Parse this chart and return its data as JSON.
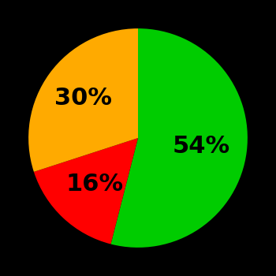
{
  "slices": [
    54,
    16,
    30
  ],
  "colors": [
    "#00cc00",
    "#ff0000",
    "#ffaa00"
  ],
  "labels": [
    "54%",
    "16%",
    "30%"
  ],
  "label_r": [
    0.58,
    0.58,
    0.62
  ],
  "background_color": "#000000",
  "text_color": "#000000",
  "font_size": 22,
  "font_weight": "bold",
  "startangle": 90,
  "figsize": [
    3.5,
    3.5
  ],
  "dpi": 100
}
